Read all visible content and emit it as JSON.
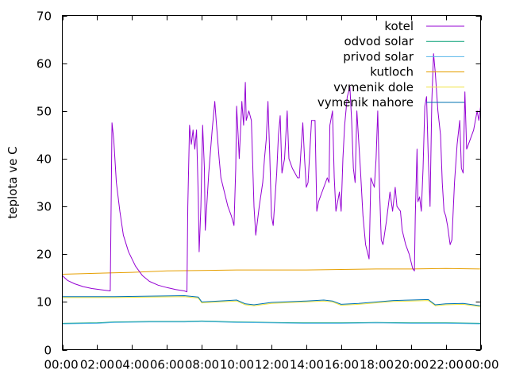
{
  "chart_data": {
    "type": "line",
    "title": "",
    "xlabel": "",
    "ylabel": "teplota ve C",
    "ylim": [
      0,
      70
    ],
    "xlim": [
      0,
      24
    ],
    "grid": false,
    "legend_position": "top-right",
    "x_tick_labels": [
      "00:00",
      "02:00",
      "04:00",
      "06:00",
      "08:00",
      "10:00",
      "12:00",
      "14:00",
      "16:00",
      "18:00",
      "20:00",
      "22:00",
      "00:00"
    ],
    "y_ticks": [
      0,
      10,
      20,
      30,
      40,
      50,
      60,
      70
    ],
    "series": [
      {
        "name": "kotel",
        "color": "#9400d3",
        "points": [
          [
            0,
            15.5
          ],
          [
            0.3,
            14.5
          ],
          [
            0.7,
            13.8
          ],
          [
            1.2,
            13.2
          ],
          [
            1.7,
            12.8
          ],
          [
            2.3,
            12.5
          ],
          [
            2.75,
            12.3
          ],
          [
            2.8,
            30
          ],
          [
            2.85,
            47.5
          ],
          [
            2.95,
            44
          ],
          [
            3.1,
            35
          ],
          [
            3.3,
            29
          ],
          [
            3.5,
            24
          ],
          [
            3.8,
            20.5
          ],
          [
            4.2,
            17.5
          ],
          [
            4.6,
            15.5
          ],
          [
            5.0,
            14.3
          ],
          [
            5.5,
            13.5
          ],
          [
            6.0,
            13.0
          ],
          [
            6.5,
            12.6
          ],
          [
            7.0,
            12.3
          ],
          [
            7.15,
            12.1
          ],
          [
            7.2,
            30
          ],
          [
            7.3,
            47
          ],
          [
            7.4,
            43
          ],
          [
            7.5,
            46
          ],
          [
            7.6,
            42
          ],
          [
            7.7,
            46
          ],
          [
            7.8,
            32
          ],
          [
            7.85,
            20.5
          ],
          [
            7.95,
            30
          ],
          [
            8.05,
            47
          ],
          [
            8.15,
            38
          ],
          [
            8.2,
            25
          ],
          [
            8.4,
            37
          ],
          [
            8.6,
            46
          ],
          [
            8.75,
            52
          ],
          [
            8.85,
            47
          ],
          [
            9.0,
            40
          ],
          [
            9.1,
            36
          ],
          [
            9.3,
            33
          ],
          [
            9.5,
            30
          ],
          [
            9.7,
            28
          ],
          [
            9.85,
            26
          ],
          [
            9.95,
            38
          ],
          [
            10.0,
            51
          ],
          [
            10.1,
            44
          ],
          [
            10.15,
            40
          ],
          [
            10.3,
            52
          ],
          [
            10.4,
            47
          ],
          [
            10.5,
            56
          ],
          [
            10.55,
            48
          ],
          [
            10.7,
            50
          ],
          [
            10.85,
            48
          ],
          [
            10.9,
            42
          ],
          [
            11.0,
            30
          ],
          [
            11.1,
            24
          ],
          [
            11.3,
            30
          ],
          [
            11.5,
            35
          ],
          [
            11.6,
            40
          ],
          [
            11.7,
            44
          ],
          [
            11.8,
            52
          ],
          [
            11.9,
            41
          ],
          [
            12.0,
            28
          ],
          [
            12.1,
            26
          ],
          [
            12.3,
            37
          ],
          [
            12.4,
            45
          ],
          [
            12.5,
            49
          ],
          [
            12.6,
            37
          ],
          [
            12.75,
            40
          ],
          [
            12.9,
            50
          ],
          [
            13.0,
            40
          ],
          [
            13.2,
            38
          ],
          [
            13.35,
            37
          ],
          [
            13.5,
            36
          ],
          [
            13.6,
            36
          ],
          [
            13.7,
            42
          ],
          [
            13.8,
            47.5
          ],
          [
            13.9,
            40
          ],
          [
            14.0,
            34
          ],
          [
            14.1,
            35
          ],
          [
            14.3,
            48
          ],
          [
            14.5,
            48
          ],
          [
            14.6,
            29
          ],
          [
            14.7,
            31
          ],
          [
            14.9,
            33
          ],
          [
            15.0,
            34
          ],
          [
            15.2,
            36
          ],
          [
            15.3,
            35
          ],
          [
            15.35,
            47
          ],
          [
            15.5,
            50
          ],
          [
            15.6,
            36
          ],
          [
            15.7,
            29
          ],
          [
            15.9,
            33
          ],
          [
            16.0,
            29
          ],
          [
            16.1,
            40
          ],
          [
            16.2,
            47
          ],
          [
            16.35,
            53
          ],
          [
            16.5,
            55
          ],
          [
            16.6,
            48
          ],
          [
            16.7,
            38
          ],
          [
            16.8,
            35
          ],
          [
            16.9,
            50
          ],
          [
            17.0,
            44
          ],
          [
            17.1,
            38
          ],
          [
            17.25,
            28
          ],
          [
            17.4,
            22
          ],
          [
            17.6,
            19
          ],
          [
            17.7,
            36
          ],
          [
            17.9,
            34
          ],
          [
            18.0,
            40
          ],
          [
            18.1,
            50
          ],
          [
            18.2,
            34
          ],
          [
            18.3,
            23
          ],
          [
            18.4,
            22
          ],
          [
            18.6,
            27
          ],
          [
            18.8,
            33
          ],
          [
            18.95,
            29
          ],
          [
            19.1,
            34
          ],
          [
            19.2,
            30
          ],
          [
            19.4,
            29
          ],
          [
            19.5,
            25
          ],
          [
            19.7,
            22
          ],
          [
            19.9,
            20
          ],
          [
            20.1,
            17
          ],
          [
            20.2,
            16.5
          ],
          [
            20.25,
            28
          ],
          [
            20.35,
            42
          ],
          [
            20.4,
            31
          ],
          [
            20.5,
            32
          ],
          [
            20.6,
            29
          ],
          [
            20.7,
            38
          ],
          [
            20.8,
            51
          ],
          [
            20.9,
            53
          ],
          [
            21.0,
            40
          ],
          [
            21.1,
            30
          ],
          [
            21.2,
            52
          ],
          [
            21.3,
            62
          ],
          [
            21.4,
            58
          ],
          [
            21.55,
            50
          ],
          [
            21.7,
            45
          ],
          [
            21.8,
            35
          ],
          [
            21.9,
            29
          ],
          [
            22.0,
            28
          ],
          [
            22.1,
            26
          ],
          [
            22.25,
            22
          ],
          [
            22.35,
            23
          ],
          [
            22.5,
            35
          ],
          [
            22.65,
            43
          ],
          [
            22.8,
            48
          ],
          [
            22.9,
            38
          ],
          [
            23.0,
            37
          ],
          [
            23.1,
            54
          ],
          [
            23.2,
            42
          ],
          [
            23.3,
            43
          ],
          [
            23.4,
            44
          ],
          [
            23.6,
            46
          ],
          [
            23.8,
            50
          ],
          [
            23.9,
            48
          ],
          [
            24.0,
            51
          ],
          [
            24.1,
            49
          ],
          [
            24.2,
            48
          ],
          [
            24.35,
            40
          ],
          [
            24.5,
            38
          ],
          [
            24.6,
            37
          ],
          [
            24.7,
            40
          ],
          [
            24.75,
            30
          ]
        ]
      },
      {
        "name": "odvod solar",
        "color": "#009e73",
        "points": [
          [
            0,
            5.5
          ],
          [
            2,
            5.6
          ],
          [
            3,
            5.8
          ],
          [
            5,
            5.9
          ],
          [
            7,
            5.9
          ],
          [
            8,
            6.0
          ],
          [
            9,
            5.9
          ],
          [
            10,
            5.8
          ],
          [
            12,
            5.7
          ],
          [
            14,
            5.6
          ],
          [
            16,
            5.6
          ],
          [
            18,
            5.7
          ],
          [
            20,
            5.6
          ],
          [
            22,
            5.6
          ],
          [
            24.75,
            5.5
          ]
        ]
      },
      {
        "name": "privod solar",
        "color": "#56b4e9",
        "points": [
          [
            0,
            5.4
          ],
          [
            2,
            5.5
          ],
          [
            3,
            5.7
          ],
          [
            5,
            5.8
          ],
          [
            7,
            5.8
          ],
          [
            8,
            5.9
          ],
          [
            9,
            5.8
          ],
          [
            10,
            5.7
          ],
          [
            12,
            5.6
          ],
          [
            14,
            5.5
          ],
          [
            16,
            5.5
          ],
          [
            18,
            5.6
          ],
          [
            20,
            5.5
          ],
          [
            22,
            5.5
          ],
          [
            24.75,
            5.4
          ]
        ]
      },
      {
        "name": "kutloch",
        "color": "#e69f00",
        "points": [
          [
            0,
            15.8
          ],
          [
            2,
            16.0
          ],
          [
            4,
            16.2
          ],
          [
            6,
            16.5
          ],
          [
            8,
            16.6
          ],
          [
            10,
            16.7
          ],
          [
            12,
            16.7
          ],
          [
            14,
            16.7
          ],
          [
            16,
            16.8
          ],
          [
            18,
            16.9
          ],
          [
            20,
            16.9
          ],
          [
            22,
            17.0
          ],
          [
            24.75,
            16.9
          ]
        ]
      },
      {
        "name": "vymenik dole",
        "color": "#f0e442",
        "points": [
          [
            0,
            10.9
          ],
          [
            3,
            10.9
          ],
          [
            5,
            11.0
          ],
          [
            7,
            11.1
          ],
          [
            7.8,
            10.8
          ],
          [
            8,
            9.8
          ],
          [
            9,
            10.0
          ],
          [
            10,
            10.2
          ],
          [
            10.5,
            9.4
          ],
          [
            11,
            9.2
          ],
          [
            12,
            9.7
          ],
          [
            14,
            10.0
          ],
          [
            15,
            10.2
          ],
          [
            15.5,
            10.0
          ],
          [
            16,
            9.3
          ],
          [
            17,
            9.5
          ],
          [
            19,
            10.1
          ],
          [
            20,
            10.2
          ],
          [
            21,
            10.3
          ],
          [
            21.4,
            9.2
          ],
          [
            22,
            9.4
          ],
          [
            23,
            9.5
          ],
          [
            24,
            9.0
          ],
          [
            24.75,
            9.2
          ]
        ]
      },
      {
        "name": "vymenik nahore",
        "color": "#0072b2",
        "points": [
          [
            0,
            11.1
          ],
          [
            3,
            11.1
          ],
          [
            5,
            11.2
          ],
          [
            7,
            11.3
          ],
          [
            7.8,
            11.0
          ],
          [
            8,
            10.0
          ],
          [
            9,
            10.2
          ],
          [
            10,
            10.4
          ],
          [
            10.5,
            9.6
          ],
          [
            11,
            9.4
          ],
          [
            12,
            9.9
          ],
          [
            14,
            10.2
          ],
          [
            15,
            10.4
          ],
          [
            15.5,
            10.2
          ],
          [
            16,
            9.5
          ],
          [
            17,
            9.7
          ],
          [
            19,
            10.3
          ],
          [
            20,
            10.4
          ],
          [
            21,
            10.5
          ],
          [
            21.4,
            9.4
          ],
          [
            22,
            9.6
          ],
          [
            23,
            9.7
          ],
          [
            24,
            9.2
          ],
          [
            24.75,
            9.4
          ]
        ]
      }
    ]
  }
}
